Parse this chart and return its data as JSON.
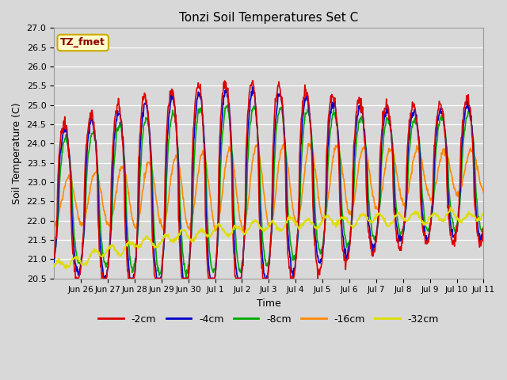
{
  "title": "Tonzi Soil Temperatures Set C",
  "xlabel": "Time",
  "ylabel": "Soil Temperature (C)",
  "ylim": [
    20.5,
    27.0
  ],
  "annotation_text": "TZ_fmet",
  "annotation_bg": "#ffffcc",
  "annotation_border": "#ccaa00",
  "annotation_text_color": "#8b0000",
  "fig_bg": "#d8d8d8",
  "plot_bg": "#d8d8d8",
  "series_colors": [
    "#dd0000",
    "#0000cc",
    "#00aa00",
    "#ff8800",
    "#dddd00"
  ],
  "series_labels": [
    "-2cm",
    "-4cm",
    "-8cm",
    "-16cm",
    "-32cm"
  ],
  "line_width": 1.2,
  "tick_labels": [
    "Jun 26",
    "Jun 27",
    "Jun 28",
    "Jun 29",
    "Jun 30",
    "Jul 1",
    "Jul 2",
    "Jul 3",
    "Jul 4",
    "Jul 5",
    "Jul 6",
    "Jul 7",
    "Jul 8",
    "Jul 9",
    "Jul 10",
    "Jul 11"
  ],
  "n_points": 960
}
